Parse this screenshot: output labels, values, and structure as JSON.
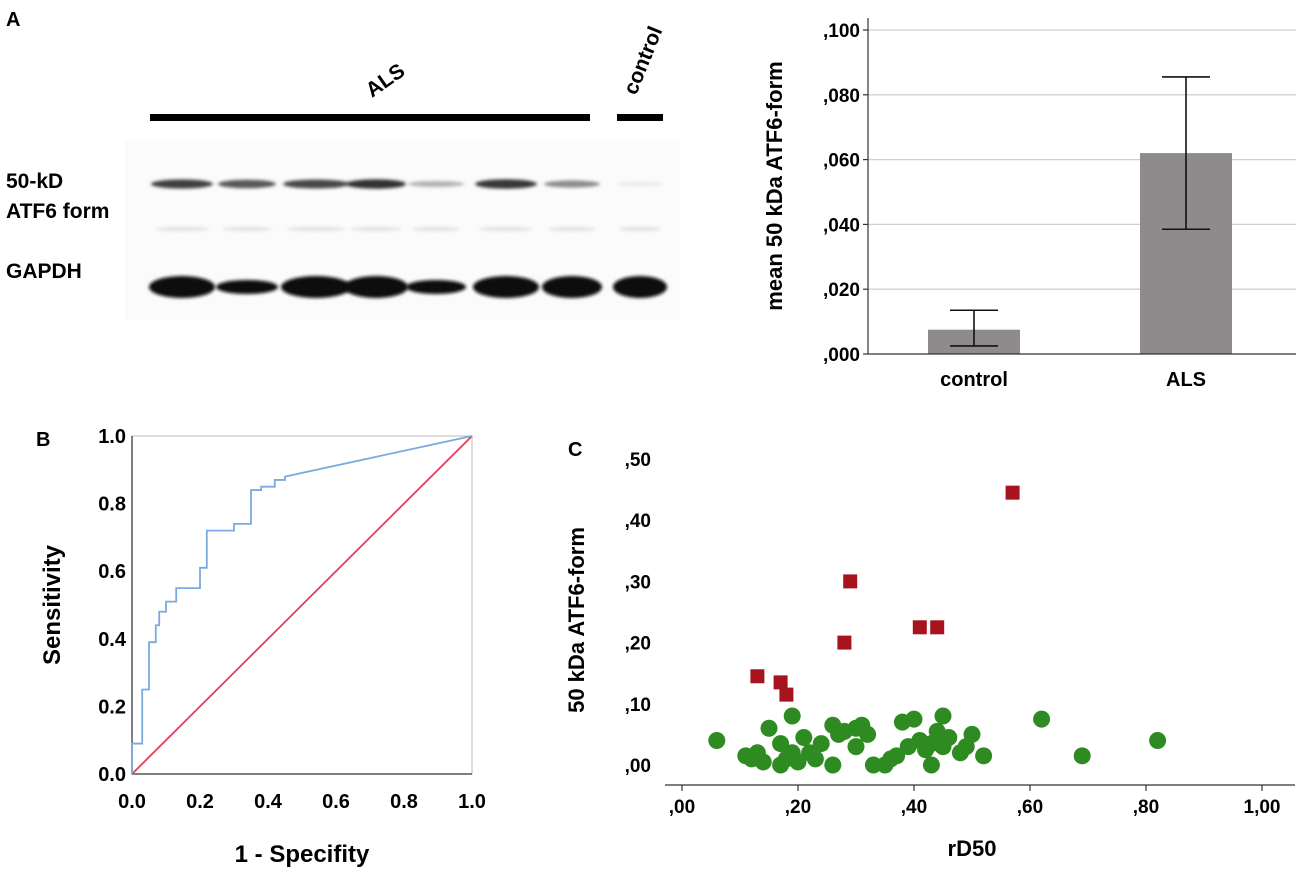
{
  "panels": {
    "a": "A",
    "b": "B",
    "c": "C"
  },
  "blot": {
    "group_als": "ALS",
    "group_control": "control",
    "band_label_line1": "50-kD",
    "band_label_line2": "ATF6 form",
    "loading_label": "GAPDH",
    "lane_count": 8,
    "atf6_intensity": [
      0.75,
      0.65,
      0.72,
      0.8,
      0.3,
      0.78,
      0.45,
      0.08
    ],
    "gapdh_intensity": [
      1.0,
      0.85,
      1.0,
      1.0,
      0.85,
      1.0,
      1.0,
      1.0
    ]
  },
  "colors": {
    "bar": "#8f8b8c",
    "roc_curve": "#7aaae0",
    "reference_line": "#e0405a",
    "als_marker": "#a8141e",
    "control_marker": "#2e8b22",
    "grid": "#d0d0d0"
  },
  "chart_data": [
    {
      "id": "bar",
      "type": "bar",
      "categories": [
        "control",
        "ALS"
      ],
      "values": [
        0.0075,
        0.062
      ],
      "error_low": [
        0.0025,
        0.0385
      ],
      "error_high": [
        0.0135,
        0.0855
      ],
      "ylabel": "mean 50 kDa ATF6-form",
      "ylim": [
        0,
        0.1
      ],
      "yticks": [
        0,
        0.02,
        0.04,
        0.06,
        0.08,
        0.1
      ],
      "ytick_labels": [
        ",000",
        ",020",
        ",040",
        ",060",
        ",080",
        ",100"
      ],
      "grid": true
    },
    {
      "id": "roc",
      "type": "line",
      "xlabel": "1 - Specifity",
      "ylabel": "Sensitivity",
      "xlim": [
        0,
        1
      ],
      "ylim": [
        0,
        1
      ],
      "ticks": [
        0,
        0.2,
        0.4,
        0.6,
        0.8,
        1.0
      ],
      "tick_labels": [
        "0.0",
        "0.2",
        "0.4",
        "0.6",
        "0.8",
        "1.0"
      ],
      "series": [
        {
          "name": "ROC curve",
          "x": [
            0,
            0,
            0.03,
            0.03,
            0.05,
            0.05,
            0.07,
            0.07,
            0.08,
            0.08,
            0.1,
            0.1,
            0.13,
            0.13,
            0.2,
            0.2,
            0.22,
            0.22,
            0.3,
            0.3,
            0.35,
            0.35,
            0.38,
            0.38,
            0.42,
            0.42,
            0.45,
            0.45,
            1.0
          ],
          "y": [
            0,
            0.09,
            0.09,
            0.25,
            0.25,
            0.39,
            0.39,
            0.44,
            0.44,
            0.48,
            0.48,
            0.51,
            0.51,
            0.55,
            0.55,
            0.61,
            0.61,
            0.72,
            0.72,
            0.74,
            0.74,
            0.84,
            0.84,
            0.85,
            0.85,
            0.87,
            0.87,
            0.88,
            1.0
          ]
        },
        {
          "name": "Reference line",
          "x": [
            0,
            1
          ],
          "y": [
            0,
            1
          ]
        }
      ]
    },
    {
      "id": "scatter",
      "type": "scatter",
      "xlabel": "rD50",
      "ylabel": "50 kDa ATF6-form",
      "xlim": [
        0,
        1
      ],
      "ylim": [
        0,
        0.5
      ],
      "xticks": [
        0,
        0.2,
        0.4,
        0.6,
        0.8,
        1.0
      ],
      "xtick_labels": [
        ",00",
        ",20",
        ",40",
        ",60",
        ",80",
        "1,00"
      ],
      "yticks": [
        0,
        0.1,
        0.2,
        0.3,
        0.4,
        0.5
      ],
      "ytick_labels": [
        ",00",
        ",10",
        ",20",
        ",30",
        ",40",
        ",50"
      ],
      "series": [
        {
          "name": "ALS (high)",
          "marker": "square",
          "x": [
            0.13,
            0.17,
            0.18,
            0.28,
            0.29,
            0.41,
            0.44,
            0.57
          ],
          "y": [
            0.145,
            0.135,
            0.115,
            0.2,
            0.3,
            0.225,
            0.225,
            0.445
          ]
        },
        {
          "name": "others",
          "marker": "circle",
          "x": [
            0.06,
            0.11,
            0.12,
            0.13,
            0.14,
            0.15,
            0.17,
            0.17,
            0.18,
            0.19,
            0.19,
            0.2,
            0.21,
            0.22,
            0.23,
            0.24,
            0.26,
            0.26,
            0.27,
            0.28,
            0.3,
            0.3,
            0.31,
            0.32,
            0.33,
            0.35,
            0.36,
            0.37,
            0.38,
            0.39,
            0.4,
            0.41,
            0.42,
            0.43,
            0.43,
            0.44,
            0.45,
            0.45,
            0.46,
            0.48,
            0.49,
            0.5,
            0.52,
            0.62,
            0.69,
            0.82
          ],
          "y": [
            0.04,
            0.015,
            0.01,
            0.02,
            0.005,
            0.06,
            0.0,
            0.035,
            0.01,
            0.02,
            0.08,
            0.005,
            0.045,
            0.02,
            0.01,
            0.035,
            0.065,
            0.0,
            0.05,
            0.055,
            0.06,
            0.03,
            0.065,
            0.05,
            0.0,
            0.0,
            0.01,
            0.015,
            0.07,
            0.03,
            0.075,
            0.04,
            0.025,
            0.035,
            0.0,
            0.055,
            0.08,
            0.03,
            0.045,
            0.02,
            0.03,
            0.05,
            0.015,
            0.075,
            0.015,
            0.04
          ]
        }
      ]
    }
  ]
}
